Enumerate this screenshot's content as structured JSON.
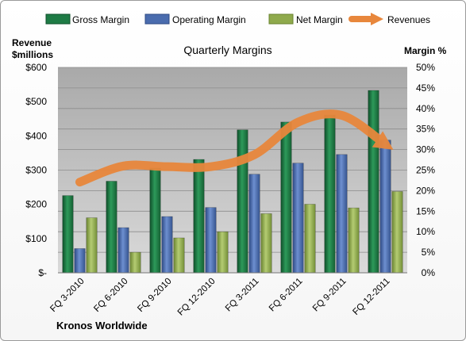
{
  "chart_data": {
    "type": "bar",
    "title": "Quarterly Margins",
    "y_left_label": [
      "Revenue",
      "$millions"
    ],
    "y_right_label": "Margin %",
    "footer": "Kronos Worldwide",
    "categories": [
      "FQ 3-2010",
      "FQ 6-2010",
      "FQ 9-2010",
      "FQ 12-2010",
      "FQ 3-2011",
      "FQ 6-2011",
      "FQ 9-2011",
      "FQ 12-2011"
    ],
    "left_axis": {
      "ticks": [
        "$-",
        "$100",
        "$200",
        "$300",
        "$400",
        "$500",
        "$600"
      ],
      "min": 0,
      "max": 600
    },
    "right_axis": {
      "ticks": [
        "0%",
        "5%",
        "10%",
        "15%",
        "20%",
        "25%",
        "30%",
        "35%",
        "40%",
        "45%",
        "50%"
      ],
      "min": 0,
      "max": 50
    },
    "grid": true,
    "legend_position": "top",
    "series": [
      {
        "name": "Gross Margin",
        "axis": "right",
        "color": "#1e7b45",
        "values": [
          18.8,
          22.3,
          25.5,
          27.6,
          34.8,
          36.7,
          38.4,
          44.4
        ]
      },
      {
        "name": "Operating Margin",
        "axis": "right",
        "color": "#4a6cae",
        "values": [
          5.9,
          11.0,
          13.7,
          15.9,
          24.0,
          26.7,
          28.8,
          32.3
        ]
      },
      {
        "name": "Net Margin",
        "axis": "right",
        "color": "#8faa4c",
        "values": [
          13.4,
          5.0,
          8.5,
          10.0,
          14.4,
          16.7,
          15.8,
          19.8
        ]
      },
      {
        "name": "Revenues",
        "axis": "left",
        "type": "line",
        "color": "#e8873c",
        "values": [
          265,
          312,
          310,
          310,
          345,
          440,
          460,
          375
        ]
      }
    ]
  }
}
